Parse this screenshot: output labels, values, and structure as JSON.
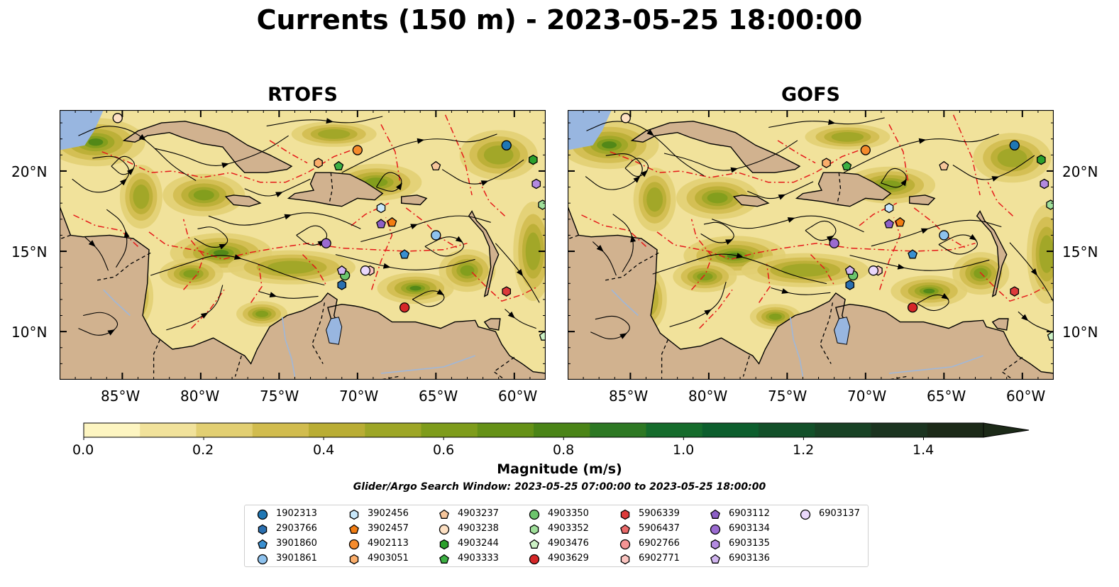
{
  "title": "Currents (150 m) - 2023-05-25 18:00:00",
  "panels": [
    {
      "title": "RTOFS"
    },
    {
      "title": "GOFS"
    }
  ],
  "lat_ticks": [
    "20°N",
    "15°N",
    "10°N"
  ],
  "lon_ticks": [
    "85°W",
    "80°W",
    "75°W",
    "70°W",
    "65°W",
    "60°W"
  ],
  "colorbar": {
    "label": "Magnitude (m/s)",
    "ticks": [
      "0.0",
      "0.2",
      "0.4",
      "0.6",
      "0.8",
      "1.0",
      "1.2",
      "1.4"
    ],
    "colors": [
      "#fdf5c1",
      "#f1e29b",
      "#e2cf72",
      "#d1bc4e",
      "#b9ad34",
      "#9da626",
      "#7e9c1b",
      "#659117",
      "#4a8417",
      "#2d7823",
      "#156c2c",
      "#0c5e2d",
      "#125029",
      "#184225",
      "#1b3420",
      "#1c2a18"
    ]
  },
  "search_window": "Glider/Argo Search Window: 2023-05-25 07:00:00 to 2023-05-25 18:00:00",
  "map_colors": {
    "ocean": "#98b6e0",
    "land": "#d1b28f",
    "eez": "#e51a1a"
  },
  "legend": [
    {
      "id": "1902313",
      "marker": "circle",
      "color": "#1f77b4"
    },
    {
      "id": "2903766",
      "marker": "hexagon",
      "color": "#2a6fb0"
    },
    {
      "id": "3901860",
      "marker": "pentagon",
      "color": "#3a8fd0"
    },
    {
      "id": "3901861",
      "marker": "circle",
      "color": "#8ec2ee"
    },
    {
      "id": "3902456",
      "marker": "hexagon",
      "color": "#c9e8fb"
    },
    {
      "id": "3902457",
      "marker": "pentagon",
      "color": "#f27d13"
    },
    {
      "id": "4902113",
      "marker": "circle",
      "color": "#f58b2c"
    },
    {
      "id": "4903051",
      "marker": "hexagon",
      "color": "#fbae6b"
    },
    {
      "id": "4903237",
      "marker": "pentagon",
      "color": "#f7c69b"
    },
    {
      "id": "4903238",
      "marker": "circle",
      "color": "#fde0c3"
    },
    {
      "id": "4903244",
      "marker": "hexagon",
      "color": "#2ca02c"
    },
    {
      "id": "4903333",
      "marker": "pentagon",
      "color": "#3cb043"
    },
    {
      "id": "4903350",
      "marker": "circle",
      "color": "#6cc56c"
    },
    {
      "id": "4903352",
      "marker": "hexagon",
      "color": "#9fdf9a"
    },
    {
      "id": "4903476",
      "marker": "pentagon",
      "color": "#cdf2c6"
    },
    {
      "id": "4903629",
      "marker": "circle",
      "color": "#d62728"
    },
    {
      "id": "5906339",
      "marker": "hexagon",
      "color": "#dc3b3b"
    },
    {
      "id": "5906437",
      "marker": "pentagon",
      "color": "#eb6a6a"
    },
    {
      "id": "6902766",
      "marker": "circle",
      "color": "#f59494"
    },
    {
      "id": "6902771",
      "marker": "hexagon",
      "color": "#fbc4c0"
    },
    {
      "id": "6903112",
      "marker": "pentagon",
      "color": "#8c5fc6"
    },
    {
      "id": "6903134",
      "marker": "circle",
      "color": "#9b6bd1"
    },
    {
      "id": "6903135",
      "marker": "hexagon",
      "color": "#b38ae0"
    },
    {
      "id": "6903136",
      "marker": "pentagon",
      "color": "#d0b4ef"
    },
    {
      "id": "6903137",
      "marker": "circle",
      "color": "#ead8fb"
    }
  ],
  "floats": [
    {
      "id": "1902313",
      "lon": -60.5,
      "lat": 21.6
    },
    {
      "id": "2903766",
      "lon": -71.0,
      "lat": 12.9
    },
    {
      "id": "3901860",
      "lon": -67.0,
      "lat": 14.8
    },
    {
      "id": "3901861",
      "lon": -65.0,
      "lat": 16.0
    },
    {
      "id": "3902456",
      "lon": -68.5,
      "lat": 17.7
    },
    {
      "id": "3902457",
      "lon": -67.8,
      "lat": 16.8
    },
    {
      "id": "4902113",
      "lon": -70.0,
      "lat": 21.3
    },
    {
      "id": "4903051",
      "lon": -72.5,
      "lat": 20.5
    },
    {
      "id": "4903237",
      "lon": -65.0,
      "lat": 20.3
    },
    {
      "id": "4903238",
      "lon": -85.3,
      "lat": 23.3
    },
    {
      "id": "4903244",
      "lon": -58.8,
      "lat": 20.7
    },
    {
      "id": "4903333",
      "lon": -71.2,
      "lat": 20.3
    },
    {
      "id": "4903350",
      "lon": -70.8,
      "lat": 13.5
    },
    {
      "id": "4903352",
      "lon": -58.2,
      "lat": 17.9
    },
    {
      "id": "4903476",
      "lon": -58.1,
      "lat": 9.7
    },
    {
      "id": "4903629",
      "lon": -67.0,
      "lat": 11.5
    },
    {
      "id": "5906339",
      "lon": -60.5,
      "lat": 12.5
    },
    {
      "id": "6902771",
      "lon": -69.2,
      "lat": 13.8
    },
    {
      "id": "6903112",
      "lon": -68.5,
      "lat": 16.7
    },
    {
      "id": "6903134",
      "lon": -72.0,
      "lat": 15.5
    },
    {
      "id": "6903135",
      "lon": -58.6,
      "lat": 19.2
    },
    {
      "id": "6903136",
      "lon": -71.0,
      "lat": 13.8
    },
    {
      "id": "6903137",
      "lon": -69.5,
      "lat": 13.8
    }
  ]
}
